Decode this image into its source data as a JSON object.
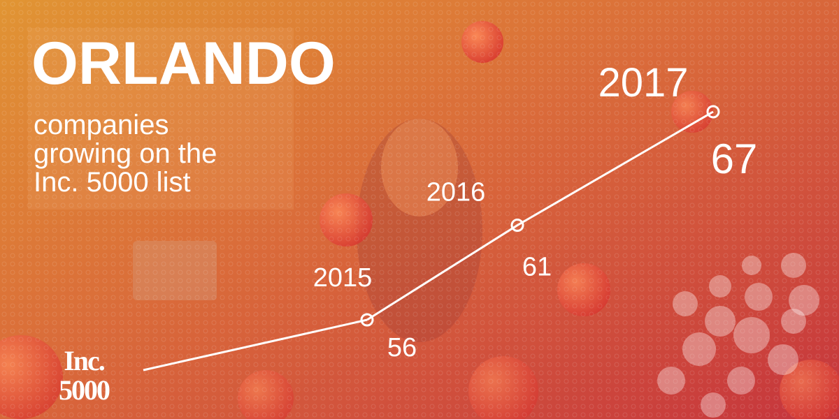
{
  "chart_data": {
    "type": "line",
    "title": "ORLANDO",
    "subtitle": [
      "companies",
      "growing on the",
      "Inc. 5000 list"
    ],
    "categories": [
      "2015",
      "2016",
      "2017"
    ],
    "values": [
      56,
      61,
      67
    ],
    "color": "#ffffff",
    "logo": [
      "Inc.",
      "5000"
    ]
  }
}
